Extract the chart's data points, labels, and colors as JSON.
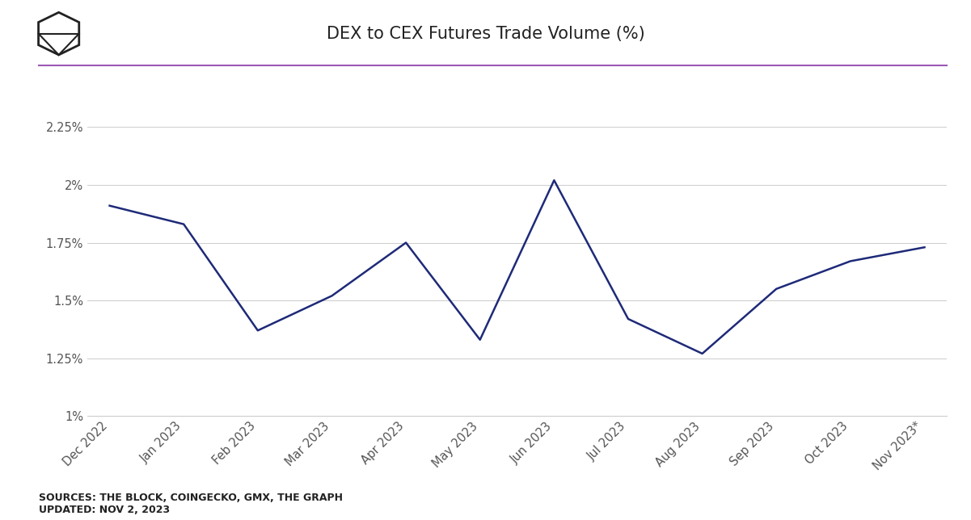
{
  "title": "DEX to CEX Futures Trade Volume (%)",
  "categories": [
    "Dec 2022",
    "Jan 2023",
    "Feb 2023",
    "Mar 2023",
    "Apr 2023",
    "May 2023",
    "Jun 2023",
    "Jul 2023",
    "Aug 2023",
    "Sep 2023",
    "Oct 2023",
    "Nov 2023*"
  ],
  "values": [
    1.91,
    1.83,
    1.37,
    1.52,
    1.75,
    1.33,
    2.02,
    1.42,
    1.27,
    1.55,
    1.67,
    1.73
  ],
  "line_color": "#1e2a78",
  "line_width": 1.8,
  "ylim": [
    1.0,
    2.35
  ],
  "yticks": [
    1.0,
    1.25,
    1.5,
    1.75,
    2.0,
    2.25
  ],
  "ytick_labels": [
    "1%",
    "1.25%",
    "1.5%",
    "1.75%",
    "2%",
    "2.25%"
  ],
  "grid_color": "#cccccc",
  "background_color": "#ffffff",
  "divider_color": "#9b59b6",
  "source_text": "SOURCES: THE BLOCK, COINGECKO, GMX, THE GRAPH\nUPDATED: NOV 2, 2023",
  "source_fontsize": 9,
  "title_fontsize": 15,
  "tick_fontsize": 10.5,
  "tick_color": "#555555"
}
